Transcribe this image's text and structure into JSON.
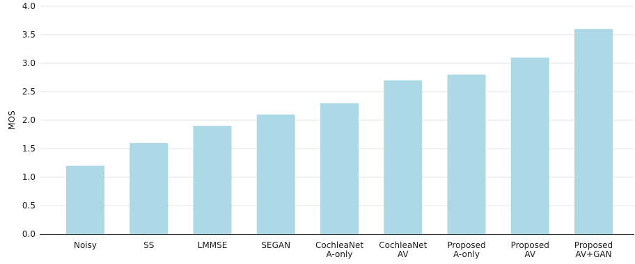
{
  "chart_data": {
    "type": "bar",
    "categories": [
      [
        "Noisy"
      ],
      [
        "SS"
      ],
      [
        "LMMSE"
      ],
      [
        "SEGAN"
      ],
      [
        "CochleaNet",
        "A-only"
      ],
      [
        "CochleaNet",
        "AV"
      ],
      [
        "Proposed",
        "A-only"
      ],
      [
        "Proposed",
        "AV"
      ],
      [
        "Proposed",
        "AV+GAN"
      ]
    ],
    "values": [
      1.2,
      1.6,
      1.9,
      2.1,
      2.3,
      2.7,
      2.8,
      3.1,
      3.6
    ],
    "ylabel": "MOS",
    "xlabel": "",
    "ylim": [
      0,
      4.0
    ],
    "yticks": [
      "0.0",
      "0.5",
      "1.0",
      "1.5",
      "2.0",
      "2.5",
      "3.0",
      "3.5",
      "4.0"
    ],
    "bar_color": "#add8e6",
    "grid": true
  }
}
